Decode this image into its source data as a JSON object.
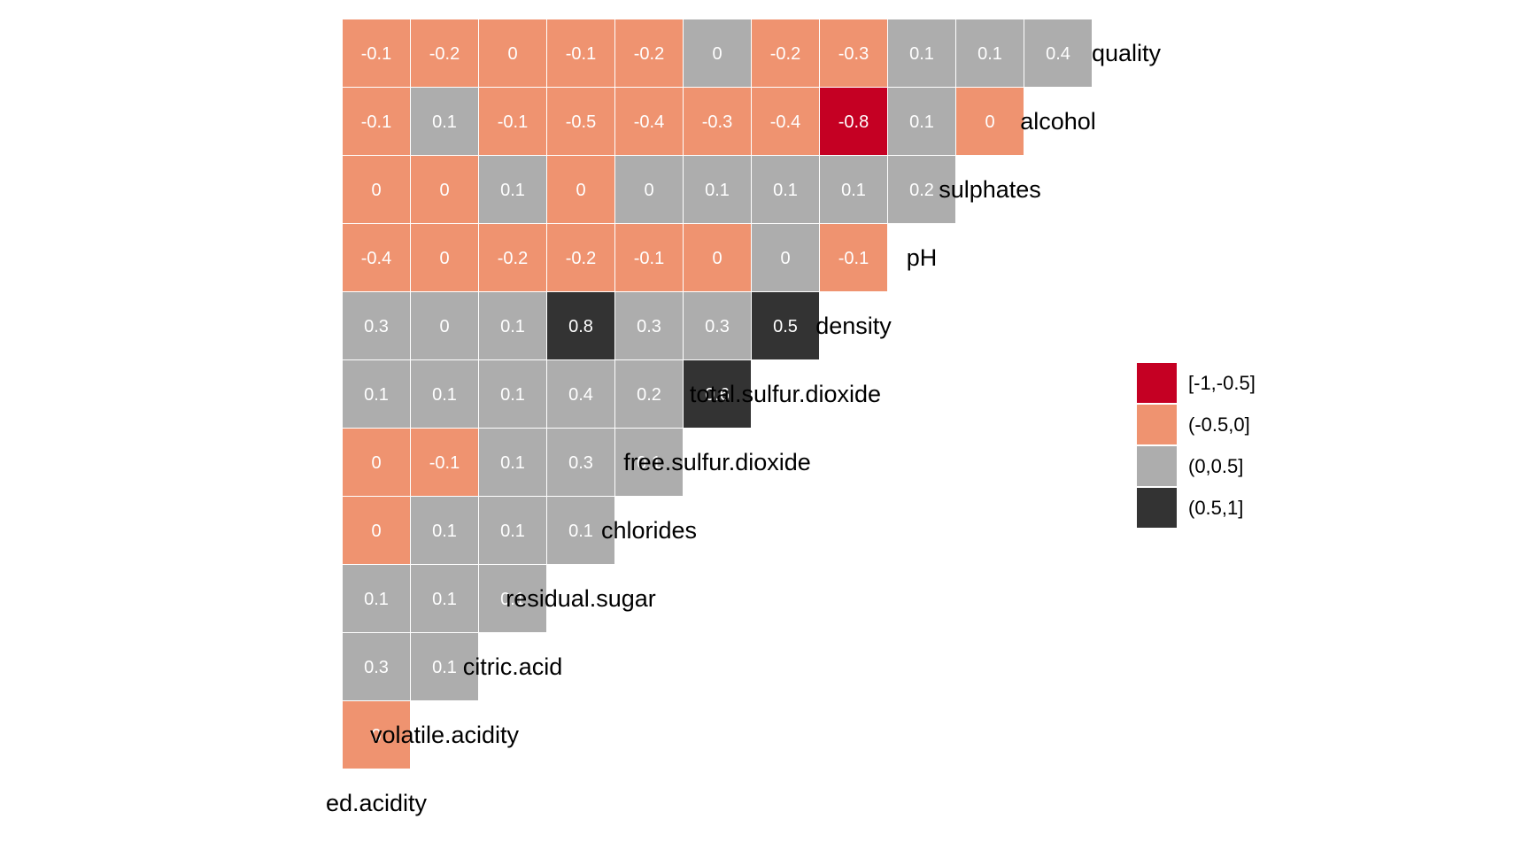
{
  "chart_data": {
    "type": "heatmap",
    "variables": [
      "fixed.acidity",
      "volatile.acidity",
      "citric.acid",
      "residual.sugar",
      "chlorides",
      "free.sulfur.dioxide",
      "total.sulfur.dioxide",
      "density",
      "pH",
      "sulphates",
      "alcohol",
      "quality"
    ],
    "diagonal_labels": [
      "ed.acidity",
      "volatile.acidity",
      "citric.acid",
      "residual.sugar",
      "chlorides",
      "free.sulfur.dioxide",
      "total.sulfur.dioxide",
      "density",
      "pH",
      "sulphates",
      "alcohol",
      "quality"
    ],
    "lower_triangle": [
      [],
      [
        0.0
      ],
      [
        0.3,
        0.1
      ],
      [
        0.1,
        0.1,
        0.1
      ],
      [
        0.0,
        0.1,
        0.1,
        0.1
      ],
      [
        0.0,
        -0.1,
        0.1,
        0.3,
        0.1
      ],
      [
        0.1,
        0.1,
        0.1,
        0.4,
        0.2,
        0.6
      ],
      [
        0.3,
        0.0,
        0.1,
        0.8,
        0.3,
        0.3,
        0.5
      ],
      [
        -0.4,
        0.0,
        -0.2,
        -0.2,
        -0.1,
        0.0,
        0.0,
        -0.1
      ],
      [
        0.0,
        0.0,
        0.1,
        0.0,
        0.0,
        0.1,
        0.1,
        0.1,
        0.2
      ],
      [
        -0.1,
        0.1,
        -0.1,
        -0.5,
        -0.4,
        -0.3,
        -0.4,
        -0.8,
        0.1,
        0.0
      ],
      [
        -0.1,
        -0.2,
        0.0,
        -0.1,
        -0.2,
        0.0,
        -0.2,
        -0.3,
        0.1,
        0.1,
        0.4
      ]
    ],
    "cell_labels": [
      [],
      [
        "0"
      ],
      [
        "0.3",
        "0.1"
      ],
      [
        "0.1",
        "0.1",
        "0.1"
      ],
      [
        "0",
        "0.1",
        "0.1",
        "0.1"
      ],
      [
        "0",
        "-0.1",
        "0.1",
        "0.3",
        "0.1"
      ],
      [
        "0.1",
        "0.1",
        "0.1",
        "0.4",
        "0.2",
        "0.6"
      ],
      [
        "0.3",
        "0",
        "0.1",
        "0.8",
        "0.3",
        "0.3",
        "0.5"
      ],
      [
        "-0.4",
        "0",
        "-0.2",
        "-0.2",
        "-0.1",
        "0",
        "0",
        "-0.1"
      ],
      [
        "0",
        "0",
        "0.1",
        "0",
        "0",
        "0.1",
        "0.1",
        "0.1",
        "0.2"
      ],
      [
        "-0.1",
        "0.1",
        "-0.1",
        "-0.5",
        "-0.4",
        "-0.3",
        "-0.4",
        "-0.8",
        "0.1",
        "0"
      ],
      [
        "-0.1",
        "-0.2",
        "0",
        "-0.1",
        "-0.2",
        "0",
        "-0.2",
        "-0.3",
        "0.1",
        "0.1",
        "0.4"
      ]
    ],
    "cell_bins": [
      [],
      [
        1
      ],
      [
        2,
        2
      ],
      [
        2,
        2,
        2
      ],
      [
        1,
        2,
        2,
        2
      ],
      [
        1,
        1,
        2,
        2,
        2
      ],
      [
        2,
        2,
        2,
        2,
        2,
        3
      ],
      [
        2,
        2,
        2,
        3,
        2,
        2,
        3
      ],
      [
        1,
        1,
        1,
        1,
        1,
        1,
        2,
        1
      ],
      [
        1,
        1,
        2,
        1,
        2,
        2,
        2,
        2,
        2
      ],
      [
        1,
        2,
        1,
        1,
        1,
        1,
        1,
        0,
        2,
        1
      ],
      [
        1,
        1,
        1,
        1,
        1,
        2,
        1,
        1,
        2,
        2,
        2
      ]
    ],
    "legend": {
      "placement": "right",
      "entries": [
        {
          "label": "[-1,-0.5]",
          "color": "#C50023"
        },
        {
          "label": "(-0.5,0]",
          "color": "#EF9370"
        },
        {
          "label": "(0,0.5]",
          "color": "#ADADAD"
        },
        {
          "label": "(0.5,1]",
          "color": "#333333"
        }
      ]
    }
  }
}
